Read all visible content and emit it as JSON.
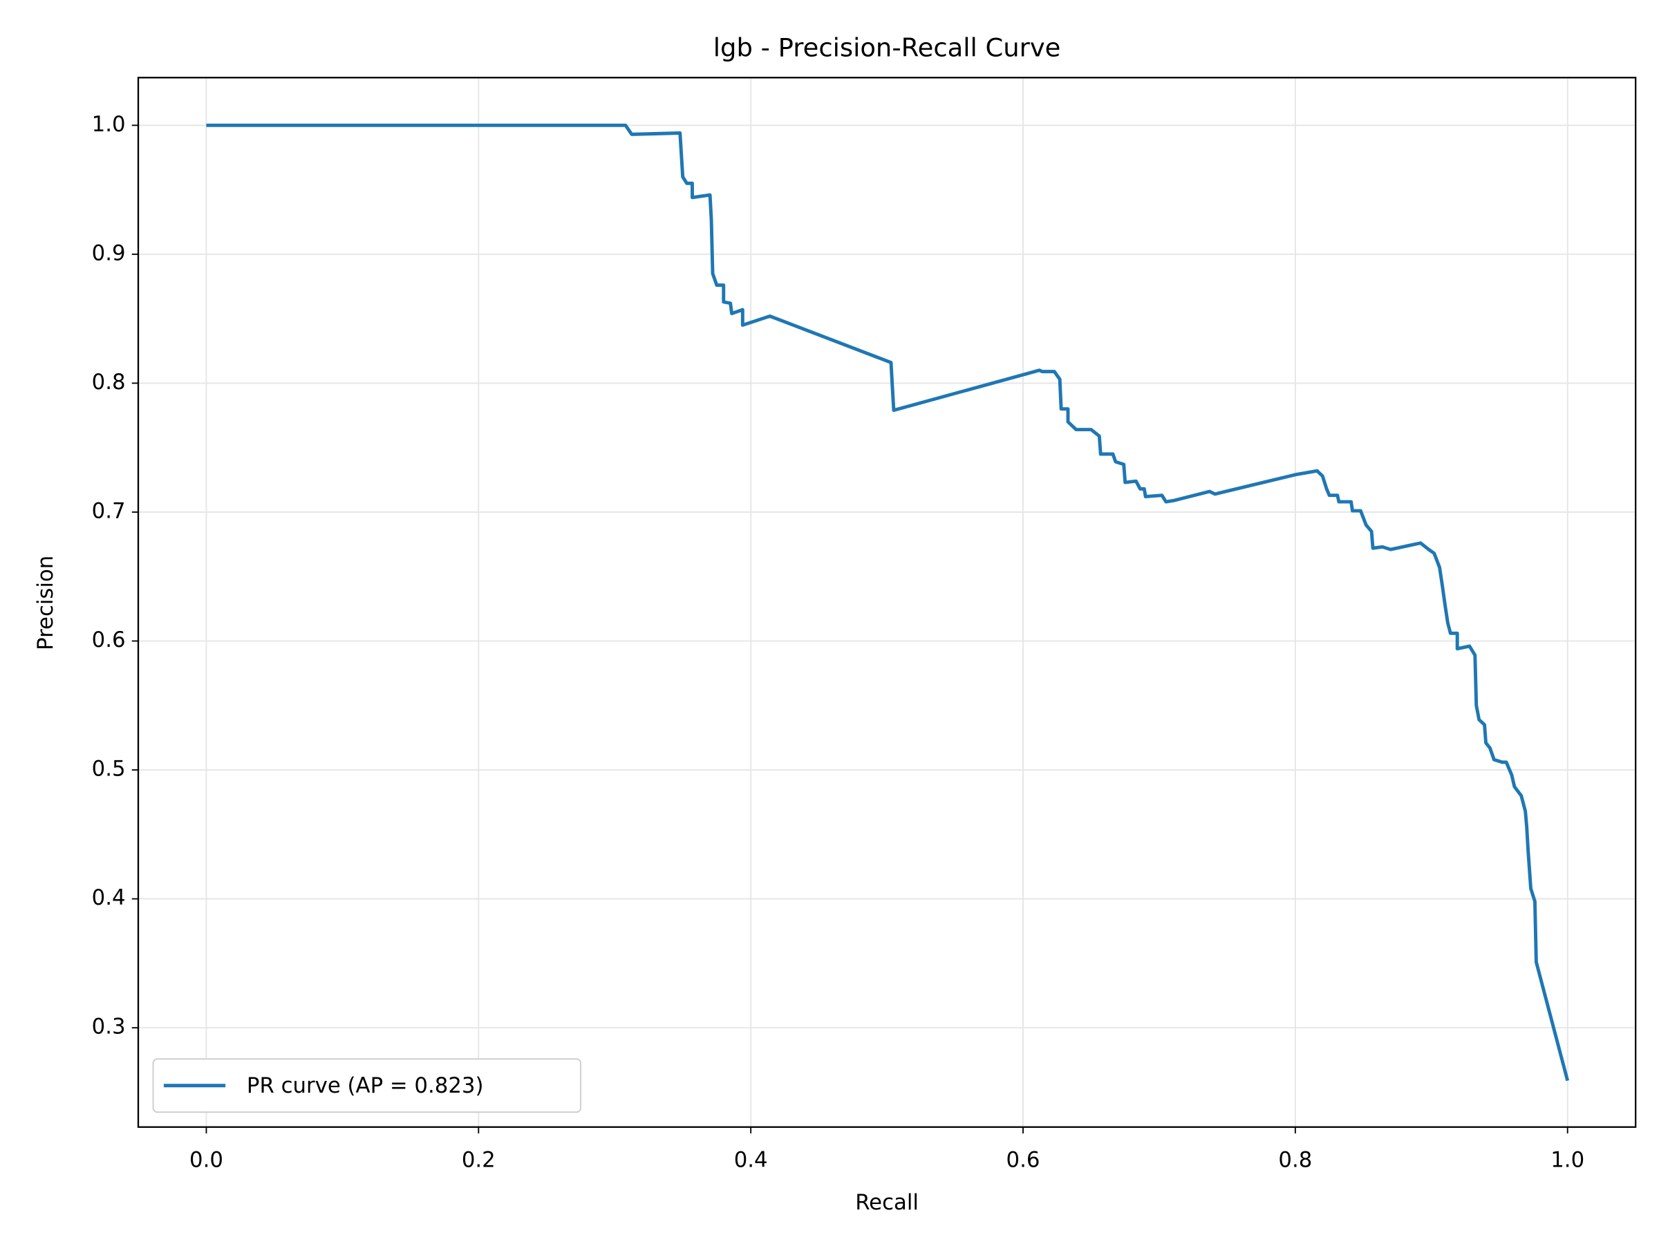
{
  "chart_data": {
    "type": "line",
    "title": "lgb - Precision-Recall Curve",
    "x_label": "Recall",
    "y_label": "Precision",
    "xlim": [
      -0.05,
      1.05
    ],
    "ylim": [
      0.223,
      1.037
    ],
    "xticks": [
      {
        "value": 0,
        "label": "0.0"
      },
      0.2,
      0.4,
      0.6,
      0.8,
      {
        "value": 1,
        "label": "1.0"
      }
    ],
    "yticks": [
      0.3,
      0.4,
      0.5,
      0.6,
      0.7,
      0.8,
      0.9,
      {
        "value": 1,
        "label": "1.0"
      }
    ],
    "grid": true,
    "legend": "lower left",
    "series": [
      {
        "name": "PR curve (AP = 0.823)",
        "color": "#1f77b4",
        "x": [
          0,
          0.308,
          0.3125,
          0.348,
          0.35,
          0.353,
          0.357,
          0.357,
          0.37,
          0.371,
          0.372,
          0.375,
          0.38,
          0.38,
          0.385,
          0.386,
          0.394,
          0.394,
          0.414,
          0.503,
          0.504,
          0.505,
          0.612,
          0.614,
          0.623,
          0.627,
          0.628,
          0.633,
          0.633,
          0.639,
          0.65,
          0.656,
          0.657,
          0.666,
          0.668,
          0.674,
          0.675,
          0.683,
          0.686,
          0.689,
          0.69,
          0.702,
          0.705,
          0.711,
          0.737,
          0.741,
          0.8,
          0.816,
          0.82,
          0.823,
          0.825,
          0.831,
          0.832,
          0.841,
          0.842,
          0.848,
          0.852,
          0.856,
          0.857,
          0.864,
          0.87,
          0.892,
          0.898,
          0.902,
          0.906,
          0.908,
          0.91,
          0.912,
          0.914,
          0.919,
          0.919,
          0.928,
          0.932,
          0.933,
          0.935,
          0.939,
          0.94,
          0.943,
          0.946,
          0.952,
          0.955,
          0.959,
          0.961,
          0.966,
          0.969,
          0.97,
          0.971,
          0.973,
          0.976,
          0.977,
          1
        ],
        "values": [
          1,
          1,
          0.993,
          0.994,
          0.96,
          0.955,
          0.955,
          0.944,
          0.946,
          0.927,
          0.885,
          0.876,
          0.876,
          0.863,
          0.862,
          0.854,
          0.857,
          0.845,
          0.852,
          0.816,
          0.797,
          0.779,
          0.81,
          0.809,
          0.809,
          0.803,
          0.78,
          0.78,
          0.77,
          0.764,
          0.764,
          0.759,
          0.745,
          0.745,
          0.739,
          0.737,
          0.723,
          0.724,
          0.718,
          0.718,
          0.712,
          0.713,
          0.708,
          0.709,
          0.716,
          0.714,
          0.729,
          0.732,
          0.728,
          0.718,
          0.713,
          0.713,
          0.708,
          0.708,
          0.701,
          0.701,
          0.69,
          0.685,
          0.672,
          0.673,
          0.671,
          0.676,
          0.671,
          0.668,
          0.657,
          0.643,
          0.628,
          0.614,
          0.606,
          0.606,
          0.594,
          0.596,
          0.589,
          0.55,
          0.539,
          0.535,
          0.521,
          0.517,
          0.508,
          0.506,
          0.506,
          0.496,
          0.487,
          0.48,
          0.468,
          0.456,
          0.438,
          0.408,
          0.398,
          0.351,
          0.259
        ]
      }
    ]
  }
}
